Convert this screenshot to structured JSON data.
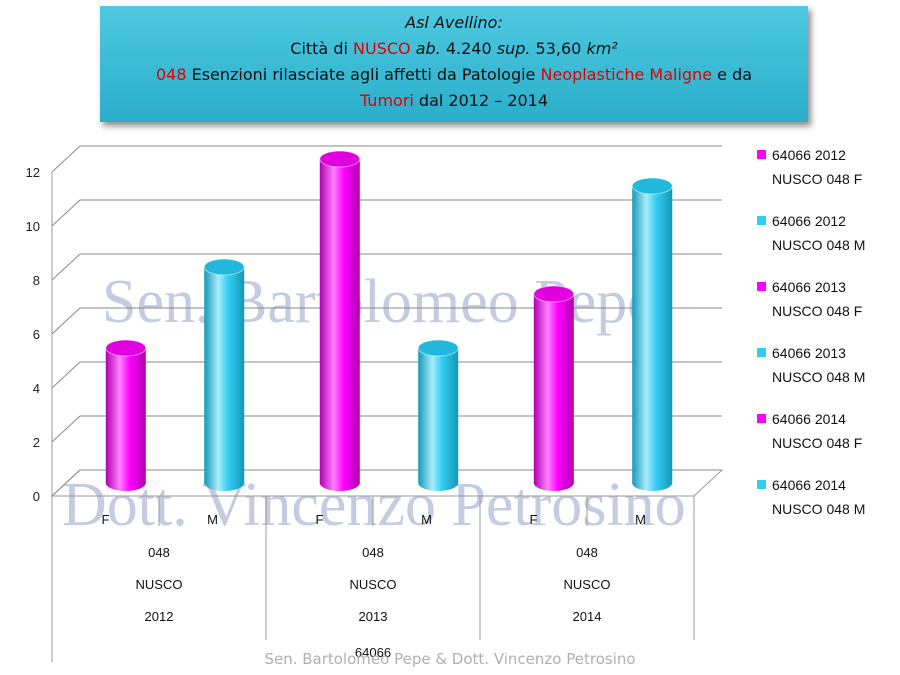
{
  "banner": {
    "line1": "Asl Avellino:",
    "line2_a": "Città di ",
    "line2_town": "NUSCO",
    "line2_ab": "ab.",
    "line2_pop": " 4.240  ",
    "line2_sup": "sup.",
    "line2_area": " 53,60 ",
    "line2_unit": "km²",
    "line3_code": "048",
    "line3_a": " Esenzioni rilasciate agli affetti da Patologie ",
    "line3_red": "Neoplastiche Maligne",
    "line3_b": " e da",
    "line4_red": "Tumori",
    "line4_a": " dal 2012 – 2014"
  },
  "watermarks": [
    "Sen. Bartolomeo Pepe",
    "Dott. Vincenzo Petrosino"
  ],
  "footer": "Sen. Bartolomeo Pepe &  Dott. Vincenzo Petrosino",
  "colors": {
    "F": "#ff00ff",
    "M": "#33ccf2"
  },
  "chart_data": {
    "type": "bar",
    "ylim": [
      0,
      12
    ],
    "yticks": [
      0,
      2,
      4,
      6,
      8,
      10,
      12
    ],
    "x_bottom_label": "64066",
    "groups": [
      {
        "lines": [
          "048",
          "NUSCO",
          "2012"
        ],
        "bars": [
          {
            "label": "F",
            "value": 5
          },
          {
            "label": "M",
            "value": 8
          }
        ]
      },
      {
        "lines": [
          "048",
          "NUSCO",
          "2013"
        ],
        "bars": [
          {
            "label": "F",
            "value": 12
          },
          {
            "label": "M",
            "value": 5
          }
        ]
      },
      {
        "lines": [
          "048",
          "NUSCO",
          "2014"
        ],
        "bars": [
          {
            "label": "F",
            "value": 7
          },
          {
            "label": "M",
            "value": 11
          }
        ]
      }
    ],
    "legend": [
      {
        "line1": "64066 2012",
        "line2": "NUSCO 048  F",
        "sex": "F"
      },
      {
        "line1": "64066 2012",
        "line2": "NUSCO 048  M",
        "sex": "M"
      },
      {
        "line1": "64066 2013",
        "line2": "NUSCO 048  F",
        "sex": "F"
      },
      {
        "line1": "64066 2013",
        "line2": "NUSCO 048  M",
        "sex": "M"
      },
      {
        "line1": "64066 2014",
        "line2": "NUSCO 048  F",
        "sex": "F"
      },
      {
        "line1": "64066 2014",
        "line2": "NUSCO 048  M",
        "sex": "M"
      }
    ]
  }
}
